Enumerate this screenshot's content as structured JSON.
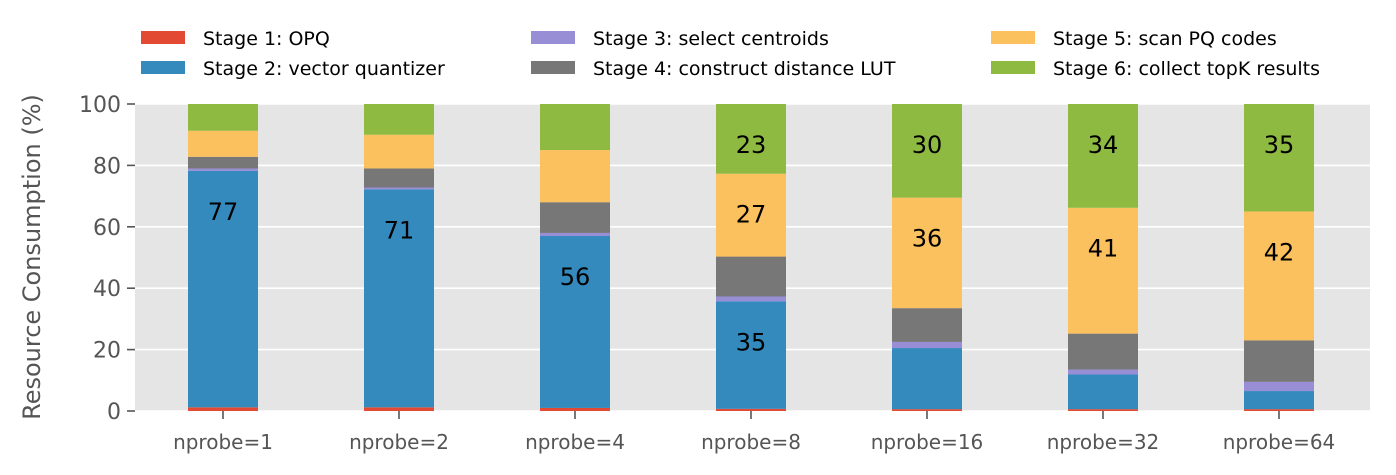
{
  "chart_data": {
    "type": "bar",
    "stacked": true,
    "ylabel": "Resource Consumption (%)",
    "xlabel": "",
    "ylim": [
      0,
      100
    ],
    "yticks": [
      0,
      20,
      40,
      60,
      80,
      100
    ],
    "grid": true,
    "legend_position": "top",
    "categories": [
      "nprobe=1",
      "nprobe=2",
      "nprobe=4",
      "nprobe=8",
      "nprobe=16",
      "nprobe=32",
      "nprobe=64"
    ],
    "series": [
      {
        "name": "Stage 1: OPQ",
        "color": "#E24A33",
        "values": [
          1.2,
          1.2,
          1.0,
          0.7,
          0.6,
          0.6,
          0.6
        ]
      },
      {
        "name": "Stage 2: vector quantizer",
        "color": "#348ABD",
        "values": [
          77,
          71,
          56,
          35,
          19.9,
          11.3,
          5.9
        ]
      },
      {
        "name": "Stage 3: select centroids",
        "color": "#988ED5",
        "values": [
          0.8,
          0.6,
          1.0,
          1.6,
          2.0,
          1.6,
          3.0
        ]
      },
      {
        "name": "Stage 4: construct distance LUT",
        "color": "#777777",
        "values": [
          3.8,
          6.2,
          10.0,
          13.0,
          11.0,
          11.7,
          13.5
        ]
      },
      {
        "name": "Stage 5: scan PQ codes",
        "color": "#FBC15E",
        "values": [
          8.5,
          11.0,
          17.0,
          27,
          36,
          41,
          42
        ]
      },
      {
        "name": "Stage 6: collect topK results",
        "color": "#8EBA42",
        "values": [
          8.7,
          10.0,
          15.0,
          22.7,
          30.5,
          33.8,
          35
        ]
      }
    ],
    "labels": [
      {
        "category": 0,
        "series": 1,
        "text": "77"
      },
      {
        "category": 1,
        "series": 1,
        "text": "71"
      },
      {
        "category": 2,
        "series": 1,
        "text": "56"
      },
      {
        "category": 3,
        "series": 1,
        "text": "35"
      },
      {
        "category": 3,
        "series": 4,
        "text": "27"
      },
      {
        "category": 3,
        "series": 5,
        "text": "23"
      },
      {
        "category": 4,
        "series": 4,
        "text": "36"
      },
      {
        "category": 4,
        "series": 5,
        "text": "30"
      },
      {
        "category": 5,
        "series": 4,
        "text": "41"
      },
      {
        "category": 5,
        "series": 5,
        "text": "34"
      },
      {
        "category": 6,
        "series": 4,
        "text": "42"
      },
      {
        "category": 6,
        "series": 5,
        "text": "35"
      }
    ]
  }
}
